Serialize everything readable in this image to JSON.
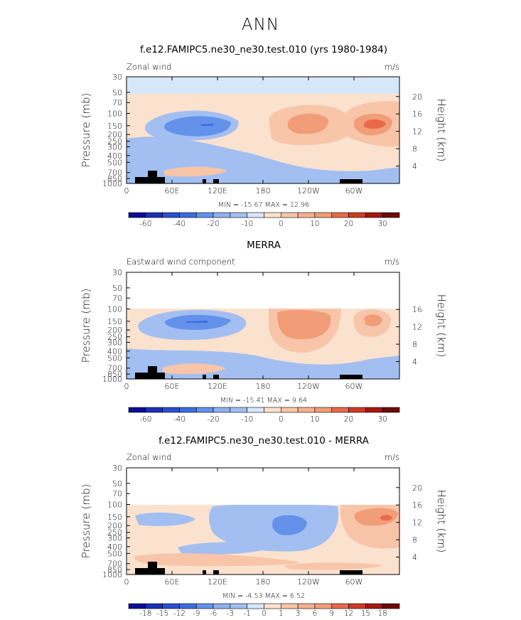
{
  "suptitle": "ANN",
  "colors": {
    "lev_-60": "#0c0c96",
    "lev_-50": "#1b2fb6",
    "lev_-40": "#2a4fd2",
    "lev_-30": "#3a6de0",
    "lev_-20": "#6491ea",
    "lev_-10": "#a3bff2",
    "lev_0": "#d6e7f9",
    "lev_p0": "#fbe2cf",
    "lev_10": "#f8c5a9",
    "lev_20": "#f19d78",
    "lev_30": "#e86a4a",
    "lev_40": "#cf3a26",
    "lev_50": "#a5170f",
    "lev_60": "#6e0a06",
    "missing": "#000000",
    "topo": "#000000"
  },
  "chart_data": [
    {
      "type": "contour",
      "title": "f.e12.FAMIPC5.ne30_ne30.test.010 (yrs 1980-1984)",
      "left_string": "Zonal wind",
      "right_string": "m/s",
      "ylabel": "Pressure (mb)",
      "y2label": "Height (km)",
      "xticks": [
        "0",
        "60E",
        "120E",
        "180",
        "120W",
        "60W"
      ],
      "yticks": [
        "30",
        "50",
        "70",
        "100",
        "150",
        "200",
        "250",
        "300",
        "400",
        "500",
        "700",
        "850",
        "1000"
      ],
      "height_ticks": [
        "4",
        "8",
        "12",
        "16",
        "20"
      ],
      "ylim": [
        1000,
        30
      ],
      "stats": "MIN = -15.67  MAX =  12.96",
      "min": -15.67,
      "max": 12.96,
      "colorbar_labels": [
        "-60",
        "-40",
        "-20",
        "-10",
        "0",
        "10",
        "20",
        "30"
      ],
      "colorbar_levels": [
        -70,
        -60,
        -50,
        -40,
        -30,
        -20,
        -15,
        -10,
        -5,
        0,
        5,
        10,
        15,
        20,
        25,
        30,
        35
      ]
    },
    {
      "type": "contour",
      "title": "MERRA",
      "left_string": "Eastward wind component",
      "right_string": "m/s",
      "ylabel": "Pressure (mb)",
      "y2label": "Height (km)",
      "xticks": [
        "0",
        "60E",
        "120E",
        "180",
        "120W",
        "60W"
      ],
      "yticks": [
        "30",
        "50",
        "70",
        "100",
        "150",
        "200",
        "250",
        "300",
        "400",
        "500",
        "700",
        "850",
        "1000"
      ],
      "height_ticks": [
        "4",
        "8",
        "12",
        "16"
      ],
      "ylim": [
        1000,
        30
      ],
      "stats": "MIN = -15.41  MAX =   9.64",
      "min": -15.41,
      "max": 9.64,
      "colorbar_labels": [
        "-60",
        "-40",
        "-20",
        "-10",
        "0",
        "10",
        "20",
        "30"
      ],
      "colorbar_levels": [
        -70,
        -60,
        -50,
        -40,
        -30,
        -20,
        -15,
        -10,
        -5,
        0,
        5,
        10,
        15,
        20,
        25,
        30,
        35
      ]
    },
    {
      "type": "contour",
      "title": "f.e12.FAMIPC5.ne30_ne30.test.010 - MERRA",
      "left_string": "Zonal wind",
      "right_string": "m/s",
      "ylabel": "Pressure (mb)",
      "y2label": "Height (km)",
      "xticks": [
        "0",
        "60E",
        "120E",
        "180",
        "120W",
        "60W"
      ],
      "yticks": [
        "30",
        "50",
        "70",
        "100",
        "150",
        "200",
        "250",
        "300",
        "400",
        "500",
        "700",
        "850",
        "1000"
      ],
      "height_ticks": [
        "4",
        "8",
        "12",
        "16",
        "20"
      ],
      "ylim": [
        1000,
        30
      ],
      "stats": "MIN =  -4.53  MAX =   6.52",
      "min": -4.53,
      "max": 6.52,
      "colorbar_labels": [
        "-18",
        "-15",
        "-12",
        "-9",
        "-6",
        "-3",
        "-1",
        "0",
        "1",
        "3",
        "6",
        "9",
        "12",
        "15",
        "18"
      ],
      "colorbar_levels": [
        -21,
        -18,
        -15,
        -12,
        -9,
        -6,
        -3,
        -1,
        0,
        1,
        3,
        6,
        9,
        12,
        15,
        18,
        21
      ]
    }
  ]
}
